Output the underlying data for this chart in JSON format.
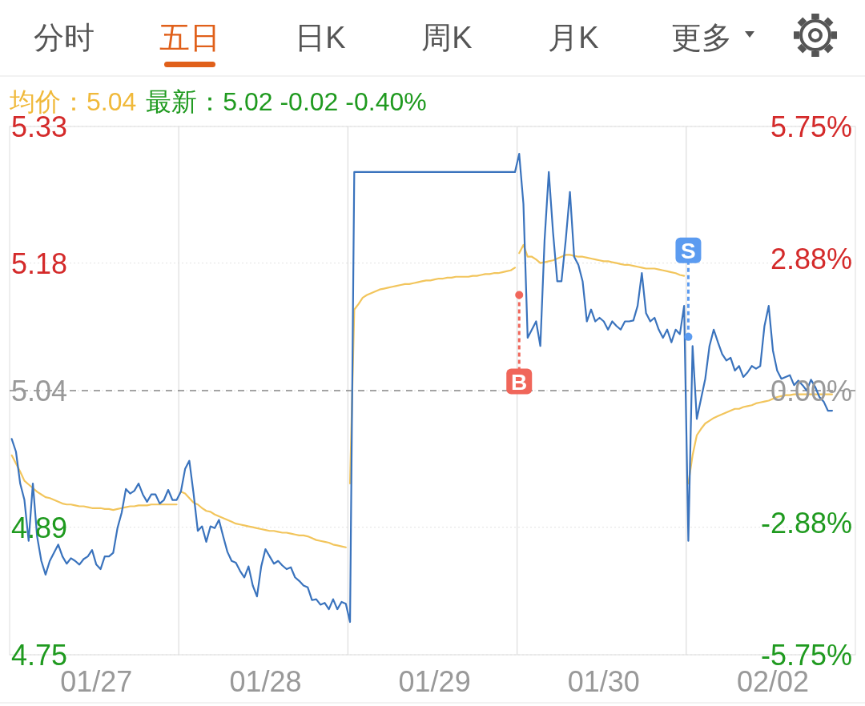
{
  "chart_data": {
    "type": "line",
    "categories": [
      null,
      null,
      null,
      null,
      null,
      null,
      null,
      null,
      null,
      null,
      null,
      null,
      null,
      null,
      null,
      null,
      null,
      null,
      null,
      null,
      "01/27",
      null,
      null,
      null,
      null,
      null,
      null,
      null,
      null,
      null,
      null,
      null,
      null,
      null,
      null,
      null,
      null,
      null,
      null,
      null,
      null,
      null,
      null,
      null,
      null,
      null,
      null,
      null,
      null,
      null,
      null,
      null,
      null,
      null,
      null,
      null,
      null,
      null,
      null,
      null,
      "01/28",
      null,
      null,
      null,
      null,
      null,
      null,
      null,
      null,
      null,
      null,
      null,
      null,
      null,
      null,
      null,
      null,
      null,
      null,
      null,
      null,
      null,
      null,
      null,
      null,
      null,
      null,
      null,
      null,
      null,
      null,
      null,
      null,
      null,
      null,
      null,
      null,
      null,
      null,
      null,
      "01/29",
      null,
      null,
      null,
      null,
      null,
      null,
      null,
      null,
      null,
      null,
      null,
      null,
      null,
      null,
      null,
      null,
      null,
      null,
      null,
      null,
      null,
      null,
      null,
      null,
      null,
      null,
      null,
      null,
      null,
      null,
      null,
      null,
      null,
      null,
      null,
      null,
      null,
      null,
      null,
      "01/30",
      null,
      null,
      null,
      null,
      null,
      null,
      null,
      null,
      null,
      null,
      null,
      null,
      null,
      null,
      null,
      null,
      null,
      null,
      null,
      null,
      null,
      null,
      null,
      null,
      null,
      null,
      null,
      null,
      null,
      null,
      null,
      null,
      null,
      null,
      null,
      null,
      null,
      null,
      null,
      "02/02",
      null,
      null,
      null,
      null,
      null,
      null,
      null,
      null,
      null,
      null,
      null,
      null,
      null,
      null,
      null,
      null,
      null,
      null,
      null
    ],
    "ylim": [
      4.75,
      5.33
    ],
    "yticks": [
      4.75,
      4.89,
      5.04,
      5.18,
      5.33
    ],
    "y2lim": [
      -5.75,
      5.75
    ],
    "y2ticks": [
      {
        "value": 5.75,
        "label": "5.75%"
      },
      {
        "value": 2.88,
        "label": "2.88%"
      },
      {
        "value": 0,
        "label": "0.00%"
      },
      {
        "value": -2.88,
        "label": "-2.88%"
      },
      {
        "value": -5.75,
        "label": "-5.75%"
      }
    ],
    "grid": true,
    "line_style": "solid",
    "ref_lines": [
      {
        "axis": "y",
        "value": 5.04,
        "color": "#888888",
        "line_style": "dashed"
      }
    ],
    "annotations": [
      "分时",
      "五日",
      "日K",
      "周K",
      "月K",
      "更多",
      "均价：5.04",
      "最新：5.02 -0.02 -0.40%",
      {
        "text": "B",
        "y": 5.145
      },
      {
        "text": "S",
        "y": 5.099
      }
    ],
    "series": [
      {
        "color": "#f2c55c",
        "values": [
          4.969,
          4.96,
          4.951,
          4.941,
          4.937,
          4.933,
          4.929,
          4.926,
          4.923,
          4.922,
          4.92,
          4.918,
          4.916,
          4.915,
          4.915,
          4.914,
          4.913,
          4.913,
          4.912,
          4.911,
          4.911,
          4.911,
          4.91,
          4.91,
          4.909,
          4.91,
          4.911,
          4.912,
          4.913,
          4.913,
          4.914,
          4.914,
          4.914,
          4.915,
          4.915,
          4.915,
          4.915,
          4.915,
          4.915,
          4.915,
          null,
          null,
          null,
          null,
          null,
          null,
          null,
          null,
          null,
          null,
          null,
          null,
          null,
          null,
          null,
          null,
          null,
          null,
          null,
          null,
          null,
          null,
          null,
          null,
          null,
          null,
          null,
          null,
          null,
          null,
          null,
          null,
          null,
          null,
          null,
          null,
          null,
          null,
          null,
          null,
          null,
          null,
          null,
          null,
          null,
          null,
          null,
          null,
          null,
          null,
          null,
          null,
          null,
          null,
          null,
          null,
          null,
          null,
          null,
          null,
          null,
          null,
          null,
          null,
          null,
          null,
          null,
          null,
          null,
          null,
          null,
          null,
          null,
          null,
          null,
          null,
          null,
          null,
          null,
          null,
          null,
          null,
          null,
          null,
          null,
          null,
          null,
          null,
          null,
          null,
          null,
          null,
          null,
          null,
          null,
          null,
          null,
          null,
          null,
          null,
          null,
          null,
          null,
          null,
          null,
          null,
          null,
          null,
          null,
          null,
          null,
          null,
          null,
          null,
          null,
          null,
          null,
          null,
          null,
          null,
          null,
          null,
          null,
          null,
          null,
          null,
          null,
          null,
          null,
          null,
          null,
          null,
          null,
          null,
          null,
          null,
          null,
          null,
          null,
          null,
          null,
          null,
          null,
          null,
          null,
          null,
          null,
          null,
          null,
          null,
          null,
          null,
          null,
          null,
          null,
          null,
          null,
          null,
          null,
          null
        ]
      },
      {
        "color": "#f2c55c",
        "values": [
          null,
          null,
          null,
          null,
          null,
          null,
          null,
          null,
          null,
          null,
          null,
          null,
          null,
          null,
          null,
          null,
          null,
          null,
          null,
          null,
          null,
          null,
          null,
          null,
          null,
          null,
          null,
          null,
          null,
          null,
          null,
          null,
          null,
          null,
          null,
          null,
          null,
          null,
          null,
          null,
          4.929,
          4.927,
          4.922,
          4.917,
          4.915,
          4.911,
          4.908,
          4.907,
          4.904,
          4.902,
          4.9,
          4.898,
          4.896,
          4.894,
          4.893,
          4.892,
          4.891,
          4.89,
          4.889,
          4.888,
          4.887,
          4.886,
          4.886,
          4.885,
          4.884,
          4.884,
          4.883,
          4.882,
          4.881,
          4.881,
          4.88,
          4.878,
          4.876,
          4.875,
          4.874,
          4.873,
          4.871,
          4.87,
          4.869,
          4.868,
          null,
          null,
          null,
          null,
          null,
          null,
          null,
          null,
          null,
          null,
          null,
          null,
          null,
          null,
          null,
          null,
          null,
          null,
          null,
          null,
          null,
          null,
          null,
          null,
          null,
          null,
          null,
          null,
          null,
          null,
          null,
          null,
          null,
          null,
          null,
          null,
          null,
          null,
          null,
          null,
          null,
          null,
          null,
          null,
          null,
          null,
          null,
          null,
          null,
          null,
          null,
          null,
          null,
          null,
          null,
          null,
          null,
          null,
          null,
          null,
          null,
          null,
          null,
          null,
          null,
          null,
          null,
          null,
          null,
          null,
          null,
          null,
          null,
          null,
          null,
          null,
          null,
          null,
          null,
          null,
          null,
          null,
          null,
          null,
          null,
          null,
          null,
          null,
          null,
          null,
          null,
          null,
          null,
          null,
          null,
          null,
          null,
          null,
          null,
          null,
          null,
          null,
          null,
          null,
          null,
          null,
          null,
          null,
          null,
          null,
          null,
          null,
          null,
          null,
          null,
          null,
          null,
          null,
          null,
          null
        ]
      },
      {
        "color": "#f2c55c",
        "values": [
          null,
          null,
          null,
          null,
          null,
          null,
          null,
          null,
          null,
          null,
          null,
          null,
          null,
          null,
          null,
          null,
          null,
          null,
          null,
          null,
          null,
          null,
          null,
          null,
          null,
          null,
          null,
          null,
          null,
          null,
          null,
          null,
          null,
          null,
          null,
          null,
          null,
          null,
          null,
          null,
          null,
          null,
          null,
          null,
          null,
          null,
          null,
          null,
          null,
          null,
          null,
          null,
          null,
          null,
          null,
          null,
          null,
          null,
          null,
          null,
          null,
          null,
          null,
          null,
          null,
          null,
          null,
          null,
          null,
          null,
          null,
          null,
          null,
          null,
          null,
          null,
          null,
          null,
          null,
          null,
          4.938,
          5.129,
          5.135,
          5.142,
          5.145,
          5.147,
          5.149,
          5.151,
          5.152,
          5.153,
          5.154,
          5.155,
          5.156,
          5.157,
          5.157,
          5.158,
          5.159,
          5.16,
          5.161,
          5.161,
          5.162,
          5.163,
          5.163,
          5.164,
          5.164,
          5.165,
          5.165,
          5.165,
          5.165,
          5.166,
          5.166,
          5.167,
          5.168,
          5.168,
          5.169,
          5.169,
          5.17,
          5.171,
          5.172,
          5.175,
          null,
          null,
          null,
          null,
          null,
          null,
          null,
          null,
          null,
          null,
          null,
          null,
          null,
          null,
          null,
          null,
          null,
          null,
          null,
          null,
          null,
          null,
          null,
          null,
          null,
          null,
          null,
          null,
          null,
          null,
          null,
          null,
          null,
          null,
          null,
          null,
          null,
          null,
          null,
          null,
          null,
          null,
          null,
          null,
          null,
          null,
          null,
          null,
          null,
          null,
          null,
          null,
          null,
          null,
          null,
          null,
          null,
          null,
          null,
          null,
          null,
          null,
          null,
          null,
          null,
          null,
          null,
          null,
          null,
          null,
          null,
          null,
          null,
          null,
          null,
          null,
          null,
          null,
          null,
          null
        ]
      },
      {
        "color": "#f2c55c",
        "values": [
          null,
          null,
          null,
          null,
          null,
          null,
          null,
          null,
          null,
          null,
          null,
          null,
          null,
          null,
          null,
          null,
          null,
          null,
          null,
          null,
          null,
          null,
          null,
          null,
          null,
          null,
          null,
          null,
          null,
          null,
          null,
          null,
          null,
          null,
          null,
          null,
          null,
          null,
          null,
          null,
          null,
          null,
          null,
          null,
          null,
          null,
          null,
          null,
          null,
          null,
          null,
          null,
          null,
          null,
          null,
          null,
          null,
          null,
          null,
          null,
          null,
          null,
          null,
          null,
          null,
          null,
          null,
          null,
          null,
          null,
          null,
          null,
          null,
          null,
          null,
          null,
          null,
          null,
          null,
          null,
          null,
          null,
          null,
          null,
          null,
          null,
          null,
          null,
          null,
          null,
          null,
          null,
          null,
          null,
          null,
          null,
          null,
          null,
          null,
          null,
          null,
          null,
          null,
          null,
          null,
          null,
          null,
          null,
          null,
          null,
          null,
          null,
          null,
          null,
          null,
          null,
          null,
          null,
          null,
          null,
          5.191,
          5.2,
          5.187,
          5.187,
          5.184,
          5.18,
          5.181,
          5.182,
          5.183,
          5.185,
          5.187,
          5.189,
          5.189,
          5.188,
          5.187,
          5.187,
          5.186,
          5.185,
          5.184,
          5.183,
          5.182,
          5.182,
          5.181,
          5.18,
          5.179,
          5.178,
          5.178,
          5.177,
          5.176,
          5.175,
          5.174,
          5.174,
          5.174,
          5.173,
          5.172,
          5.171,
          5.17,
          5.169,
          5.167,
          5.166,
          null,
          null,
          null,
          null,
          null,
          null,
          null,
          null,
          null,
          null,
          null,
          null,
          null,
          null,
          null,
          null,
          null,
          null,
          null,
          null,
          null,
          null,
          null,
          null,
          null,
          null,
          null,
          null,
          null,
          null,
          null,
          null,
          null,
          null,
          null,
          null,
          null,
          null,
          null,
          null
        ]
      },
      {
        "color": "#f2c55c",
        "values": [
          null,
          null,
          null,
          null,
          null,
          null,
          null,
          null,
          null,
          null,
          null,
          null,
          null,
          null,
          null,
          null,
          null,
          null,
          null,
          null,
          null,
          null,
          null,
          null,
          null,
          null,
          null,
          null,
          null,
          null,
          null,
          null,
          null,
          null,
          null,
          null,
          null,
          null,
          null,
          null,
          null,
          null,
          null,
          null,
          null,
          null,
          null,
          null,
          null,
          null,
          null,
          null,
          null,
          null,
          null,
          null,
          null,
          null,
          null,
          null,
          null,
          null,
          null,
          null,
          null,
          null,
          null,
          null,
          null,
          null,
          null,
          null,
          null,
          null,
          null,
          null,
          null,
          null,
          null,
          null,
          null,
          null,
          null,
          null,
          null,
          null,
          null,
          null,
          null,
          null,
          null,
          null,
          null,
          null,
          null,
          null,
          null,
          null,
          null,
          null,
          null,
          null,
          null,
          null,
          null,
          null,
          null,
          null,
          null,
          null,
          null,
          null,
          null,
          null,
          null,
          null,
          null,
          null,
          null,
          null,
          null,
          null,
          null,
          null,
          null,
          null,
          null,
          null,
          null,
          null,
          null,
          null,
          null,
          null,
          null,
          null,
          null,
          null,
          null,
          null,
          null,
          null,
          null,
          null,
          null,
          null,
          null,
          null,
          null,
          null,
          null,
          null,
          null,
          null,
          null,
          null,
          null,
          null,
          null,
          null,
          4.938,
          4.969,
          4.991,
          4.998,
          5.004,
          5.007,
          5.01,
          5.012,
          5.014,
          5.016,
          5.018,
          5.02,
          5.02,
          5.022,
          5.023,
          5.024,
          5.026,
          5.027,
          5.028,
          5.029,
          5.031,
          5.033,
          5.034,
          5.035,
          5.035,
          5.036,
          5.036,
          5.036,
          5.036,
          5.036,
          5.036,
          5.036,
          5.036,
          5.036,
          5.036,
          null,
          null,
          null,
          null,
          null
        ]
      },
      {
        "color": "#3a73bd",
        "values": [
          4.987,
          4.973,
          4.938,
          4.92,
          4.875,
          4.938,
          4.88,
          4.853,
          4.838,
          4.853,
          4.862,
          4.871,
          4.858,
          4.85,
          4.856,
          4.853,
          4.849,
          4.855,
          4.858,
          4.865,
          4.849,
          4.844,
          4.858,
          4.858,
          4.862,
          4.889,
          4.906,
          4.932,
          4.927,
          4.93,
          4.938,
          4.926,
          4.918,
          4.926,
          4.926,
          4.916,
          4.92,
          4.931,
          4.92,
          4.92,
          4.929,
          4.954,
          4.963,
          4.927,
          4.886,
          4.891,
          4.874,
          4.891,
          4.889,
          4.898,
          4.88,
          4.863,
          4.853,
          4.851,
          4.842,
          4.835,
          4.847,
          4.826,
          4.814,
          4.847,
          4.866,
          4.858,
          4.85,
          4.853,
          4.848,
          4.844,
          4.846,
          4.835,
          4.831,
          4.826,
          4.824,
          4.81,
          4.811,
          4.805,
          4.807,
          4.8,
          4.811,
          4.8,
          4.808,
          4.806,
          4.786,
          5.28,
          5.28,
          5.28,
          5.28,
          5.28,
          5.28,
          5.28,
          5.28,
          5.28,
          5.28,
          5.28,
          5.28,
          5.28,
          5.28,
          5.28,
          5.28,
          5.28,
          5.28,
          5.28,
          5.28,
          5.28,
          5.28,
          5.28,
          5.28,
          5.28,
          5.28,
          5.28,
          5.28,
          5.28,
          5.28,
          5.28,
          5.28,
          5.28,
          5.28,
          5.28,
          5.28,
          5.28,
          5.28,
          5.28,
          5.3,
          5.245,
          5.098,
          5.107,
          5.116,
          5.089,
          5.205,
          5.28,
          5.214,
          5.16,
          5.16,
          5.205,
          5.258,
          5.187,
          5.178,
          5.16,
          5.116,
          5.129,
          5.116,
          5.12,
          5.116,
          5.107,
          5.116,
          5.111,
          5.107,
          5.116,
          5.116,
          5.117,
          5.133,
          5.169,
          5.125,
          5.116,
          5.12,
          5.107,
          5.098,
          5.107,
          5.093,
          5.107,
          5.102,
          5.133,
          4.875,
          5.089,
          5.009,
          5.031,
          5.053,
          5.089,
          5.107,
          5.093,
          5.08,
          5.073,
          5.076,
          5.062,
          5.067,
          5.055,
          5.06,
          5.067,
          5.064,
          5.067,
          5.111,
          5.133,
          5.084,
          5.062,
          5.053,
          5.055,
          5.057,
          5.046,
          5.051,
          5.046,
          5.04,
          5.052,
          5.044,
          5.033,
          5.028,
          5.018,
          5.018,
          null,
          null,
          null,
          null,
          null
        ]
      }
    ]
  }
}
